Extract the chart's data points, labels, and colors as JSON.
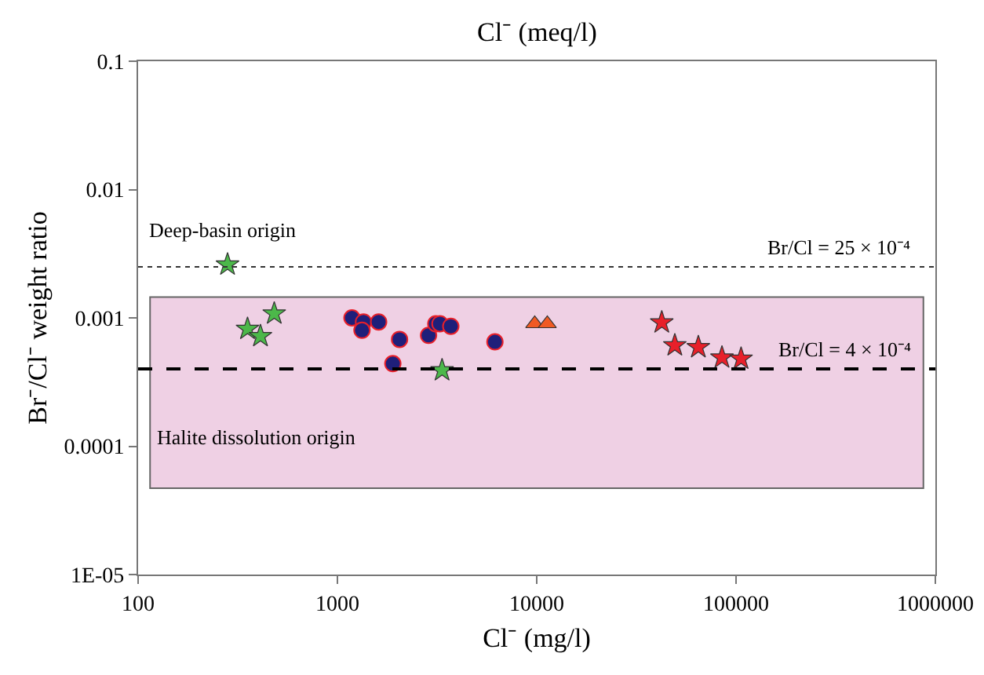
{
  "chart_data": {
    "type": "scatter",
    "x2label": "Cl⁻ (meq/l)",
    "xlabel": "Cl⁻ (mg/l)",
    "ylabel": "Br⁻/Cl⁻ weight ratio",
    "log": "xy",
    "grid": false,
    "xlim": [
      100,
      1000000
    ],
    "xticks": [
      100,
      1000,
      10000,
      100000,
      1000000
    ],
    "ylim": [
      1e-05,
      0.1
    ],
    "yticks": [
      {
        "value": 1e-05,
        "label": "1E-05"
      },
      0.0001,
      0.001,
      0.01,
      0.1
    ],
    "series": [
      {
        "color": "#4cb84a",
        "marker": "star",
        "x": [
          281,
          354,
          411,
          482,
          3350
        ],
        "values": [
          0.0026,
          0.00082,
          0.00072,
          0.00108,
          0.00039
        ]
      },
      {
        "color": "#1f1f7a",
        "marker": "circle",
        "x": [
          1183,
          1352,
          1328,
          1610,
          2050,
          1897,
          2866,
          3116,
          3270,
          3706,
          6170
        ],
        "values": [
          0.001,
          0.00093,
          0.0008,
          0.00093,
          0.00068,
          0.00044,
          0.00073,
          0.0009,
          0.0009,
          0.00086,
          0.00065
        ]
      },
      {
        "color": "#f05a23",
        "marker": "triangle",
        "x": [
          9770,
          11300
        ],
        "values": [
          0.0009,
          0.0009
        ]
      },
      {
        "color": "#e8202a",
        "marker": "star",
        "x": [
          42400,
          49300,
          64700,
          85000,
          106000
        ],
        "values": [
          0.00092,
          0.00061,
          0.00059,
          0.00049,
          0.00048
        ]
      }
    ],
    "ref_lines": [
      {
        "axis": "y",
        "value": 0.0025,
        "line_style": "dotted",
        "color": "#333333"
      },
      {
        "axis": "y",
        "value": 0.0004,
        "line_style": "dashed",
        "color": "#000000"
      }
    ],
    "bands": [
      {
        "axis": "y",
        "from": 4.7e-05,
        "to": 0.00145,
        "label": "Halite dissolution origin",
        "color": "#efd0e4"
      }
    ],
    "annotations": [
      "Deep-basin origin",
      {
        "text": "Br/Cl = 25 × 10⁻⁴",
        "y": 0.0025
      },
      {
        "text": "Br/Cl = 4 × 10⁻⁴",
        "y": 0.0004
      }
    ]
  }
}
